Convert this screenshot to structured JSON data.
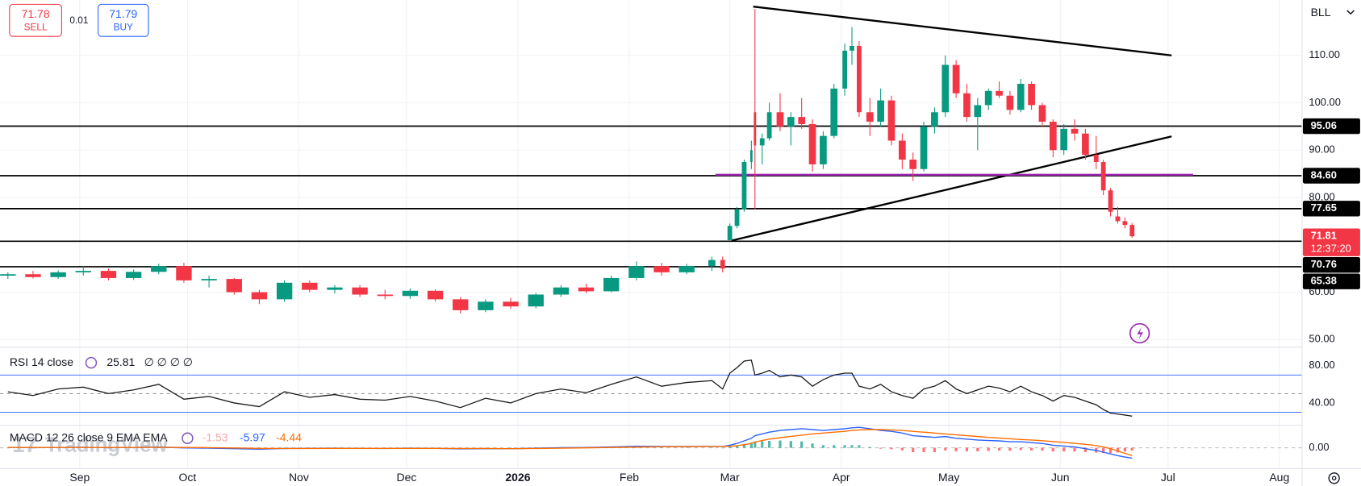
{
  "ui": {
    "sell_price": "71.78",
    "sell_label": "SELL",
    "spread": "0.01",
    "buy_price": "71.79",
    "buy_label": "BUY",
    "symbol": "BLL",
    "watermark": "TradingView",
    "watermark_logo": "17",
    "rsi_legend": "RSI 14 close",
    "rsi_extra": "∅ ∅ ∅ ∅",
    "macd_legend": "MACD 12 26 close 9 EMA EMA"
  },
  "chart_data": [
    {
      "type": "candlestick",
      "up_color": "#089981",
      "down_color": "#f23645",
      "x": [
        -20,
        -13,
        -6,
        1,
        8,
        15,
        22,
        29,
        36,
        43,
        50,
        57,
        64,
        71,
        78,
        85,
        92,
        99,
        106,
        113,
        120,
        127,
        134,
        141,
        148,
        155,
        162,
        169,
        176,
        179,
        181,
        183,
        185,
        187,
        188,
        190,
        192,
        195,
        198,
        201,
        204,
        207,
        210,
        213,
        215,
        217,
        220,
        223,
        226,
        229,
        232,
        235,
        238,
        241,
        244,
        247,
        250,
        253,
        256,
        259,
        262,
        265,
        268,
        271,
        274,
        277,
        280,
        283,
        285,
        287,
        289,
        291,
        293
      ],
      "open": [
        63.5,
        63.8,
        63.2,
        64.2,
        64.5,
        63.0,
        64.3,
        65.5,
        62.5,
        62.8,
        60.0,
        58.5,
        62.0,
        60.5,
        61.0,
        59.5,
        59.2,
        60.3,
        58.5,
        56.2,
        58.0,
        57.0,
        59.5,
        61.0,
        60.2,
        63.0,
        65.5,
        64.2,
        65.5,
        66.8,
        71.0,
        74.0,
        77.5,
        87.5,
        98.0,
        91.0,
        92.5,
        98.0,
        95.0,
        97.0,
        95.5,
        87.0,
        93.0,
        103.0,
        111.0,
        112.0,
        98.0,
        96.0,
        100.5,
        92.0,
        88.0,
        86.0,
        95.0,
        98.0,
        108.0,
        102.0,
        97.0,
        99.5,
        102.5,
        101.5,
        98.5,
        104.0,
        99.5,
        96.0,
        90.0,
        94.5,
        93.5,
        89.0,
        87.5,
        81.5,
        76.0,
        75.0,
        74.2
      ],
      "high": [
        64.2,
        64.5,
        64.6,
        65.5,
        65.0,
        64.8,
        66.0,
        66.2,
        63.5,
        63.0,
        60.5,
        62.5,
        62.5,
        61.5,
        61.5,
        60.5,
        60.8,
        60.6,
        59.0,
        58.5,
        58.8,
        59.8,
        61.5,
        61.8,
        63.5,
        66.5,
        66.2,
        66.0,
        67.5,
        67.5,
        74.5,
        78.0,
        88.0,
        92.0,
        119.8,
        93.5,
        100.0,
        102.0,
        98.0,
        101.0,
        96.5,
        94.0,
        104.0,
        112.5,
        116.0,
        113.0,
        101.0,
        103.0,
        101.5,
        93.5,
        89.5,
        96.0,
        99.0,
        110.0,
        109.0,
        104.0,
        101.0,
        103.0,
        104.5,
        102.5,
        105.0,
        104.5,
        100.0,
        96.5,
        95.5,
        96.5,
        94.5,
        93.0,
        88.0,
        82.0,
        78.0,
        75.8,
        74.6
      ],
      "low": [
        62.8,
        62.9,
        62.8,
        63.5,
        62.5,
        62.6,
        63.8,
        62.0,
        61.0,
        59.5,
        57.5,
        58.0,
        60.0,
        59.8,
        59.0,
        58.5,
        58.6,
        58.0,
        55.5,
        55.8,
        56.5,
        56.6,
        59.0,
        59.8,
        60.0,
        62.5,
        63.5,
        63.8,
        64.5,
        64.2,
        70.8,
        73.5,
        77.0,
        86.0,
        77.5,
        87.0,
        92.0,
        94.0,
        91.0,
        94.5,
        85.5,
        86.0,
        92.5,
        101.5,
        108.0,
        97.0,
        93.0,
        95.0,
        91.0,
        86.0,
        83.5,
        85.5,
        93.5,
        97.0,
        101.0,
        96.0,
        90.0,
        98.5,
        101.0,
        97.5,
        98.0,
        98.5,
        95.0,
        88.5,
        89.0,
        92.0,
        88.0,
        86.0,
        80.5,
        76.0,
        74.5,
        73.5,
        71.5
      ],
      "close": [
        63.8,
        63.2,
        64.2,
        64.5,
        63.0,
        64.3,
        65.5,
        62.5,
        62.8,
        60.0,
        58.5,
        62.0,
        60.5,
        61.0,
        59.5,
        59.2,
        60.3,
        58.5,
        56.2,
        58.0,
        57.0,
        59.5,
        61.0,
        60.2,
        63.0,
        65.5,
        64.2,
        65.5,
        66.8,
        65.0,
        74.0,
        77.5,
        87.5,
        90.0,
        91.0,
        92.5,
        98.0,
        95.0,
        97.0,
        95.5,
        87.0,
        93.0,
        103.0,
        111.0,
        112.0,
        98.0,
        96.0,
        100.5,
        92.0,
        88.0,
        86.0,
        95.0,
        98.0,
        108.0,
        102.0,
        97.0,
        99.5,
        102.5,
        101.5,
        98.5,
        104.0,
        99.5,
        96.0,
        90.0,
        94.5,
        93.5,
        89.0,
        87.5,
        81.5,
        77.0,
        75.0,
        74.2,
        71.81
      ],
      "xlim": [
        -22.2,
        340.3
      ],
      "ylim": [
        48.4,
        121.7
      ],
      "xticks": [
        {
          "value": 0,
          "label": "Sep"
        },
        {
          "value": 30,
          "label": "Oct"
        },
        {
          "value": 61,
          "label": "Nov"
        },
        {
          "value": 91,
          "label": "Dec"
        },
        {
          "value": 122,
          "label": "2026"
        },
        {
          "value": 153,
          "label": "Feb"
        },
        {
          "value": 181,
          "label": "Mar"
        },
        {
          "value": 212,
          "label": "Apr"
        },
        {
          "value": 242,
          "label": "May"
        },
        {
          "value": 273,
          "label": "Jun"
        },
        {
          "value": 303,
          "label": "Jul"
        },
        {
          "value": 334,
          "label": "Aug"
        }
      ],
      "yticks": [
        {
          "value": 50,
          "label": "50.00"
        },
        {
          "value": 60,
          "label": "60.00"
        },
        {
          "value": 80,
          "label": "80.00"
        },
        {
          "value": 90,
          "label": "90.00"
        },
        {
          "value": 100,
          "label": "100.00"
        },
        {
          "value": 110,
          "label": "110.00"
        }
      ],
      "grid": true,
      "levels": [
        95.06,
        {
          "value": 84.6,
          "label": "84.60"
        },
        77.65,
        70.76,
        65.38
      ],
      "last": {
        "value": 71.81,
        "countdown": "12:37:20",
        "color": "#f23645"
      },
      "trendlines": [
        {
          "x": [
            187.5,
            304
          ],
          "y": [
            120.3,
            110
          ],
          "color": "#000000"
        },
        {
          "x": [
            181.5,
            304
          ],
          "y": [
            70.9,
            92.9
          ],
          "color": "#000000"
        },
        {
          "x": [
            177,
            310
          ],
          "y": [
            84.8,
            84.8
          ],
          "color": "#9c27b0"
        }
      ]
    },
    {
      "type": "line",
      "color": "#1a1a1a",
      "ylim": [
        16,
        100
      ],
      "values": [
        52,
        48,
        55,
        57,
        50,
        54,
        60,
        44,
        47,
        40,
        36,
        52,
        46,
        49,
        44,
        43,
        47,
        42,
        35,
        45,
        40,
        50,
        55,
        51,
        60,
        68,
        58,
        62,
        64,
        55,
        72,
        78,
        85,
        86,
        70,
        72,
        75,
        68,
        70,
        68,
        58,
        65,
        70,
        72,
        72,
        58,
        55,
        60,
        52,
        48,
        45,
        55,
        58,
        64,
        55,
        50,
        54,
        58,
        56,
        52,
        58,
        52,
        48,
        42,
        48,
        46,
        42,
        38,
        33,
        29,
        28,
        27,
        25.81
      ],
      "yticks": [
        {
          "value": 80,
          "label": "80.00"
        },
        {
          "value": 40,
          "label": "40.00"
        }
      ],
      "bands": [
        70,
        30
      ],
      "band_color": "#2962ff",
      "midline": 50
    },
    {
      "type": "macd",
      "ylim": [
        -12,
        13
      ],
      "macd_color": "#2962ff",
      "signal_color": "#ff6d00",
      "hist_up_color": "#26a69a",
      "hist_down_color": "#ff5252",
      "hist_label_color": "#f7a9a9",
      "hist": [
        0,
        -0.1,
        0,
        0.1,
        -0.1,
        0,
        0.1,
        -0.2,
        -0.3,
        -0.4,
        -0.5,
        0,
        0.1,
        0.1,
        0,
        -0.1,
        0.1,
        0,
        -0.2,
        -0.1,
        0,
        0.2,
        0.3,
        0.2,
        0.3,
        0.5,
        0.2,
        0.1,
        0.1,
        0,
        0.6,
        1.3,
        2.2,
        3,
        3.7,
        3.8,
        4,
        4.2,
        3.9,
        3.7,
        2.5,
        1.5,
        1.5,
        1.5,
        1.5,
        1.5,
        0.5,
        -0.5,
        -0.8,
        -1.5,
        -2.5,
        -2.5,
        -2.5,
        -1.5,
        -2,
        -2,
        -2,
        -1.8,
        -1.6,
        -1.7,
        -1.3,
        -1.5,
        -1.6,
        -2.1,
        -2.1,
        -2.1,
        -2.5,
        -2.8,
        -3,
        -3,
        -2.7,
        -2.1,
        -1.53
      ],
      "macd": [
        0.2,
        0.1,
        0.2,
        0.3,
        0.1,
        0.2,
        0.4,
        0,
        -0.2,
        -0.5,
        -0.8,
        -0.4,
        -0.3,
        -0.2,
        -0.3,
        -0.4,
        -0.2,
        -0.3,
        -0.6,
        -0.5,
        -0.5,
        -0.2,
        0.1,
        0.2,
        0.5,
        0.9,
        0.8,
        0.8,
        0.9,
        0.8,
        1.5,
        2.5,
        4,
        5.5,
        7,
        8,
        9,
        10,
        10.5,
        11,
        10.5,
        10,
        10.5,
        11,
        11.5,
        11.8,
        11,
        10,
        9.5,
        8.5,
        7,
        6.5,
        6,
        6.5,
        5.5,
        5,
        4.5,
        4.2,
        4,
        3.5,
        3.5,
        3,
        2.5,
        1.5,
        1,
        0.5,
        -0.5,
        -1.5,
        -2.5,
        -3.5,
        -4.5,
        -5.3,
        -5.97
      ],
      "signal": [
        0.2,
        0.2,
        0.2,
        0.2,
        0.2,
        0.2,
        0.3,
        0.2,
        0.1,
        -0.1,
        -0.3,
        -0.4,
        -0.4,
        -0.3,
        -0.3,
        -0.3,
        -0.3,
        -0.3,
        -0.4,
        -0.4,
        -0.5,
        -0.4,
        -0.2,
        0,
        0.2,
        0.4,
        0.6,
        0.7,
        0.8,
        0.8,
        0.9,
        1.2,
        1.8,
        2.5,
        3.3,
        4.2,
        5,
        5.8,
        6.6,
        7.3,
        8,
        8.5,
        9,
        9.5,
        10,
        10.3,
        10.5,
        10.5,
        10.3,
        10,
        9.5,
        9,
        8.5,
        8,
        7.5,
        7,
        6.5,
        6,
        5.6,
        5.2,
        4.8,
        4.5,
        4.1,
        3.6,
        3.1,
        2.6,
        2,
        1.3,
        0.5,
        -0.5,
        -1.8,
        -3.2,
        -4.44
      ],
      "yticks": [
        {
          "value": 0,
          "label": "0.00"
        }
      ]
    }
  ]
}
